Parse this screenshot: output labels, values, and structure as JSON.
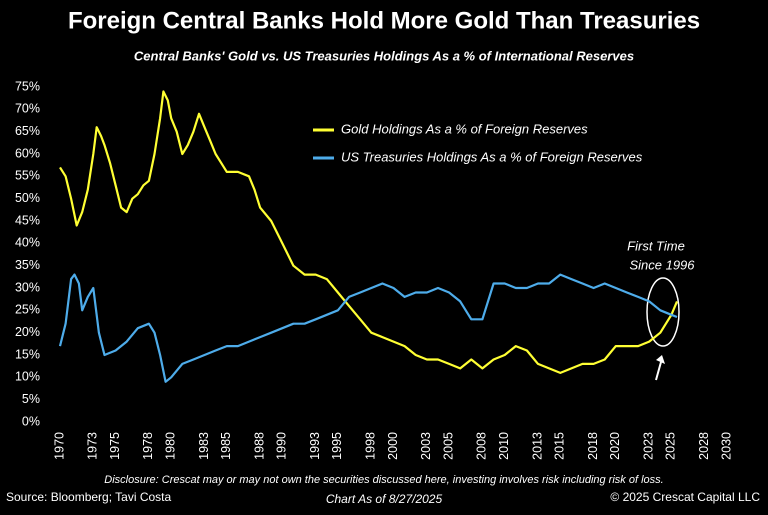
{
  "chart_data": {
    "type": "line",
    "title": "Foreign Central Banks Hold More Gold Than Treasuries",
    "subtitle": "Central Banks' Gold vs. US Treasuries Holdings As a % of International Reserves",
    "annotation": [
      "First Time",
      "Since 1996"
    ],
    "disclosure": "Disclosure: Crescat may or may not own the securities discussed here, investing involves risk including risk of loss.",
    "source": "Source: Bloomberg; Tavi Costa",
    "chart_date": "Chart As of 8/27/2025",
    "copyright": "© 2025 Crescat Capital LLC",
    "xlim": [
      1970,
      2030
    ],
    "xticks": [
      1970,
      1973,
      1975,
      1978,
      1980,
      1983,
      1985,
      1988,
      1990,
      1993,
      1995,
      1998,
      2000,
      2003,
      2005,
      2008,
      2010,
      2013,
      2015,
      2018,
      2020,
      2023,
      2025,
      2028,
      2030
    ],
    "ylim": [
      0,
      75
    ],
    "yticks": [
      {
        "value": 0,
        "label": "0%"
      },
      {
        "value": 5,
        "label": "5%"
      },
      {
        "value": 10,
        "label": "10%"
      },
      {
        "value": 15,
        "label": "15%"
      },
      {
        "value": 20,
        "label": "20%"
      },
      {
        "value": 25,
        "label": "25%"
      },
      {
        "value": 30,
        "label": "30%"
      },
      {
        "value": 35,
        "label": "35%"
      },
      {
        "value": 40,
        "label": "40%"
      },
      {
        "value": 45,
        "label": "45%"
      },
      {
        "value": 50,
        "label": "50%"
      },
      {
        "value": 55,
        "label": "55%"
      },
      {
        "value": 60,
        "label": "60%"
      },
      {
        "value": 65,
        "label": "65%"
      },
      {
        "value": 70,
        "label": "70%"
      },
      {
        "value": 75,
        "label": "75%"
      }
    ],
    "series": [
      {
        "name": "Gold Holdings As a % of Foreign Reserves",
        "color": "#ffff33",
        "x": [
          1970,
          1970.5,
          1971,
          1971.5,
          1972,
          1972.5,
          1973,
          1973.3,
          1973.7,
          1974,
          1974.5,
          1975,
          1975.5,
          1976,
          1976.5,
          1977,
          1977.5,
          1978,
          1978.5,
          1979,
          1979.3,
          1979.7,
          1980,
          1980.5,
          1981,
          1981.5,
          1982,
          1982.5,
          1983,
          1983.5,
          1984,
          1984.5,
          1985,
          1986,
          1987,
          1987.5,
          1988,
          1989,
          1990,
          1991,
          1992,
          1993,
          1994,
          1995,
          1996,
          1997,
          1998,
          1999,
          2000,
          2001,
          2002,
          2003,
          2004,
          2005,
          2006,
          2007,
          2008,
          2009,
          2010,
          2011,
          2012,
          2013,
          2014,
          2015,
          2016,
          2017,
          2018,
          2019,
          2020,
          2021,
          2022,
          2023,
          2024,
          2025,
          2025.5
        ],
        "values": [
          57,
          55,
          50,
          44,
          47,
          52,
          60,
          66,
          64,
          62,
          58,
          53,
          48,
          47,
          50,
          51,
          53,
          54,
          60,
          68,
          74,
          72,
          68,
          65,
          60,
          62,
          65,
          69,
          66,
          63,
          60,
          58,
          56,
          56,
          55,
          52,
          48,
          45,
          40,
          35,
          33,
          33,
          32,
          29,
          26,
          23,
          20,
          19,
          18,
          17,
          15,
          14,
          14,
          13,
          12,
          14,
          12,
          14,
          15,
          17,
          16,
          13,
          12,
          11,
          12,
          13,
          13,
          14,
          17,
          17,
          17,
          18,
          20,
          24,
          27
        ]
      },
      {
        "name": "US Treasuries Holdings As a % of Foreign Reserves",
        "color": "#4eacea",
        "x": [
          1970,
          1970.5,
          1971,
          1971.3,
          1971.7,
          1972,
          1972.5,
          1973,
          1973.5,
          1974,
          1975,
          1976,
          1977,
          1978,
          1978.5,
          1979,
          1979.5,
          1980,
          1981,
          1982,
          1983,
          1984,
          1985,
          1986,
          1987,
          1988,
          1989,
          1990,
          1991,
          1992,
          1993,
          1994,
          1995,
          1996,
          1997,
          1998,
          1999,
          2000,
          2001,
          2002,
          2003,
          2004,
          2005,
          2006,
          2007,
          2008,
          2009,
          2010,
          2011,
          2012,
          2013,
          2014,
          2015,
          2016,
          2017,
          2018,
          2019,
          2020,
          2021,
          2022,
          2023,
          2024,
          2025,
          2025.5
        ],
        "values": [
          17,
          22,
          32,
          33,
          31,
          25,
          28,
          30,
          20,
          15,
          16,
          18,
          21,
          22,
          20,
          15,
          9,
          10,
          13,
          14,
          15,
          16,
          17,
          17,
          18,
          19,
          20,
          21,
          22,
          22,
          23,
          24,
          25,
          28,
          29,
          30,
          31,
          30,
          28,
          29,
          29,
          30,
          29,
          27,
          23,
          23,
          31,
          31,
          30,
          30,
          31,
          31,
          33,
          32,
          31,
          30,
          31,
          30,
          29,
          28,
          27,
          25,
          24,
          23.5
        ]
      }
    ]
  }
}
